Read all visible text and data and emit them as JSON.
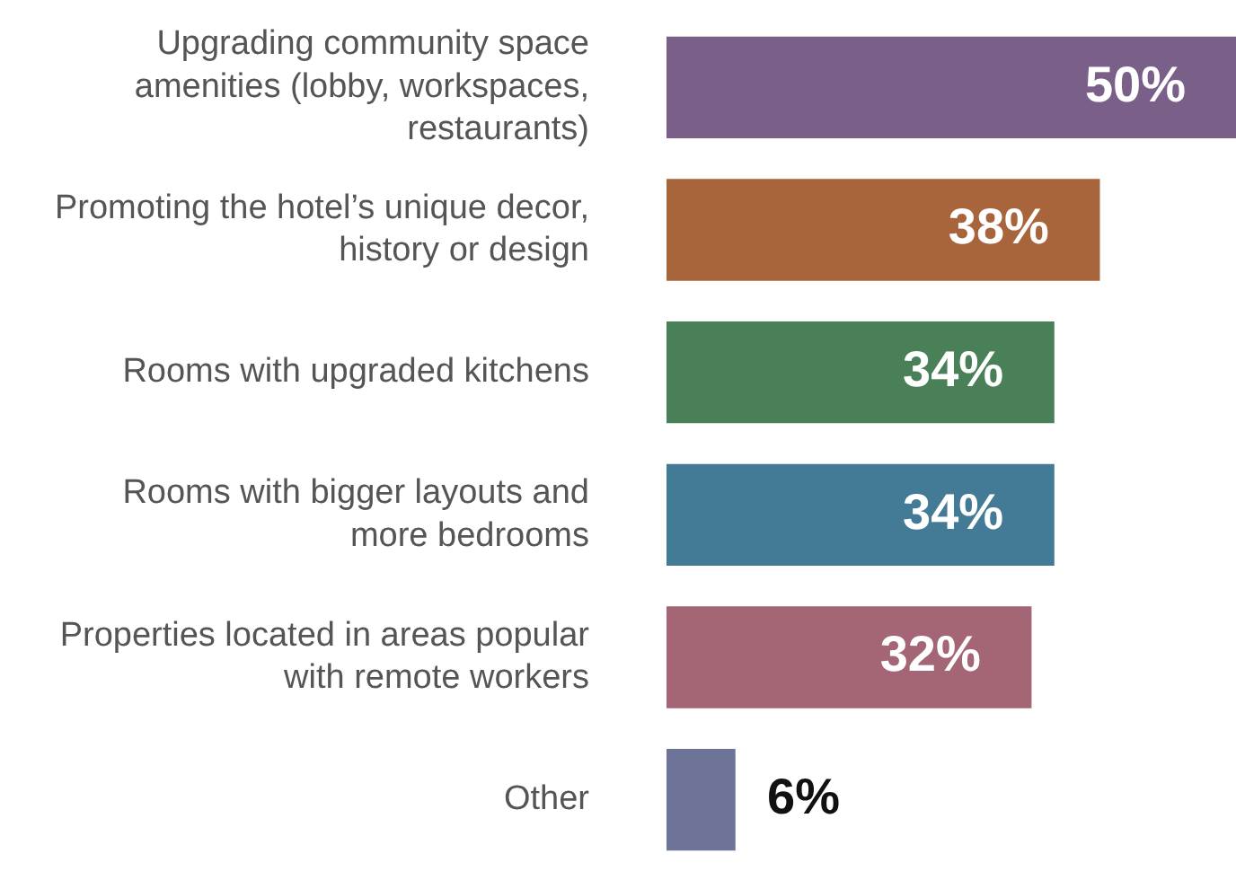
{
  "chart_data": {
    "type": "bar",
    "orientation": "horizontal",
    "categories": [
      "Upgrading community space amenities (lobby, workspaces, restaurants)",
      "Promoting the hotel’s unique decor, history or design",
      "Rooms with upgraded kitchens",
      "Rooms with bigger layouts and more bedrooms",
      "Properties located in areas popular with remote workers",
      "Other"
    ],
    "values": [
      50,
      38,
      34,
      34,
      32,
      6
    ],
    "colors": [
      "#7a6088",
      "#a8643a",
      "#4a8058",
      "#437b97",
      "#a46574",
      "#6e7498"
    ],
    "value_labels": [
      "50%",
      "38%",
      "34%",
      "34%",
      "32%",
      "6%"
    ],
    "legend": false
  }
}
